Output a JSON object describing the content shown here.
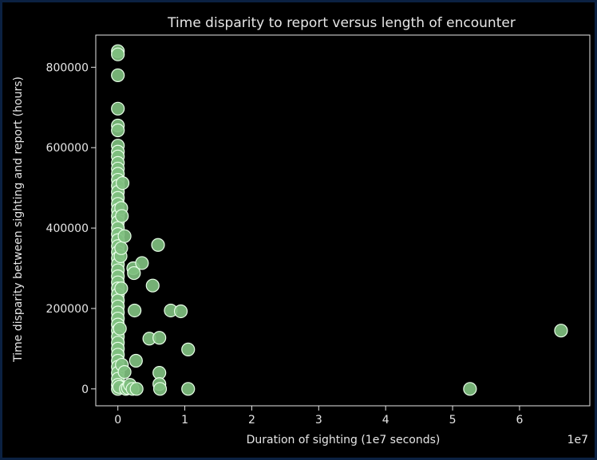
{
  "chart_data": {
    "type": "scatter",
    "title": "Time disparity to report versus length of encounter",
    "xlabel": "Duration of sighting (1e7 seconds)",
    "ylabel": "Time disparity between sighting and report (hours)",
    "x_offset_label": "1e7",
    "x_ticks": [
      0,
      1,
      2,
      3,
      4,
      5,
      6
    ],
    "x_tick_labels": [
      "0",
      "1",
      "2",
      "3",
      "4",
      "5",
      "6"
    ],
    "y_ticks": [
      0,
      200000,
      400000,
      600000,
      800000
    ],
    "y_tick_labels": [
      "0",
      "200000",
      "400000",
      "600000",
      "800000"
    ],
    "xlim": [
      -0.33,
      7.05
    ],
    "ylim": [
      -42000,
      880000
    ],
    "grid": false,
    "legend": "none",
    "colors": {
      "marker_fill": "#7fbf7f",
      "marker_edge": "#e8ffe8",
      "dense_fill": "#f0fff0",
      "axes": "#e6e6e6",
      "background": "#000000"
    },
    "points": [
      {
        "x": 0.0,
        "y": 840000
      },
      {
        "x": 0.0,
        "y": 832000
      },
      {
        "x": 0.0,
        "y": 780000
      },
      {
        "x": 0.0,
        "y": 697000
      },
      {
        "x": 0.0,
        "y": 655000
      },
      {
        "x": 0.0,
        "y": 643000
      },
      {
        "x": 0.0,
        "y": 605000
      },
      {
        "x": 0.0,
        "y": 590000
      },
      {
        "x": 0.0,
        "y": 578000
      },
      {
        "x": 0.0,
        "y": 562000
      },
      {
        "x": 0.0,
        "y": 548000
      },
      {
        "x": 0.0,
        "y": 535000
      },
      {
        "x": 0.0,
        "y": 520000
      },
      {
        "x": 0.0,
        "y": 505000
      },
      {
        "x": 0.0,
        "y": 490000
      },
      {
        "x": 0.0,
        "y": 475000
      },
      {
        "x": 0.0,
        "y": 460000
      },
      {
        "x": 0.0,
        "y": 445000
      },
      {
        "x": 0.0,
        "y": 430000
      },
      {
        "x": 0.0,
        "y": 415000
      },
      {
        "x": 0.0,
        "y": 400000
      },
      {
        "x": 0.0,
        "y": 385000
      },
      {
        "x": 0.0,
        "y": 370000
      },
      {
        "x": 0.0,
        "y": 355000
      },
      {
        "x": 0.0,
        "y": 340000
      },
      {
        "x": 0.0,
        "y": 325000
      },
      {
        "x": 0.0,
        "y": 310000
      },
      {
        "x": 0.0,
        "y": 295000
      },
      {
        "x": 0.0,
        "y": 280000
      },
      {
        "x": 0.0,
        "y": 265000
      },
      {
        "x": 0.0,
        "y": 250000
      },
      {
        "x": 0.0,
        "y": 235000
      },
      {
        "x": 0.0,
        "y": 220000
      },
      {
        "x": 0.0,
        "y": 205000
      },
      {
        "x": 0.0,
        "y": 190000
      },
      {
        "x": 0.0,
        "y": 175000
      },
      {
        "x": 0.0,
        "y": 160000
      },
      {
        "x": 0.0,
        "y": 145000
      },
      {
        "x": 0.0,
        "y": 130000
      },
      {
        "x": 0.0,
        "y": 115000
      },
      {
        "x": 0.0,
        "y": 100000
      },
      {
        "x": 0.0,
        "y": 85000
      },
      {
        "x": 0.0,
        "y": 70000
      },
      {
        "x": 0.0,
        "y": 55000
      },
      {
        "x": 0.0,
        "y": 40000
      },
      {
        "x": 0.0,
        "y": 25000
      },
      {
        "x": 0.0,
        "y": 10000
      },
      {
        "x": 0.0,
        "y": 0
      },
      {
        "x": 0.05,
        "y": 450000
      },
      {
        "x": 0.04,
        "y": 330000
      },
      {
        "x": 0.05,
        "y": 250000
      },
      {
        "x": 0.03,
        "y": 150000
      },
      {
        "x": 0.06,
        "y": 60000
      },
      {
        "x": 0.02,
        "y": 5000
      },
      {
        "x": 0.07,
        "y": 512000
      },
      {
        "x": 0.06,
        "y": 430000
      },
      {
        "x": 0.05,
        "y": 350000
      },
      {
        "x": 0.1,
        "y": 380000
      },
      {
        "x": 0.1,
        "y": 42000
      },
      {
        "x": 0.12,
        "y": 0
      },
      {
        "x": 0.15,
        "y": 2000
      },
      {
        "x": 0.18,
        "y": 10000
      },
      {
        "x": 0.22,
        "y": 0
      },
      {
        "x": 0.23,
        "y": 300000
      },
      {
        "x": 0.24,
        "y": 288000
      },
      {
        "x": 0.25,
        "y": 195000
      },
      {
        "x": 0.27,
        "y": 70000
      },
      {
        "x": 0.28,
        "y": 0
      },
      {
        "x": 0.36,
        "y": 313000
      },
      {
        "x": 0.47,
        "y": 125000
      },
      {
        "x": 0.52,
        "y": 257000
      },
      {
        "x": 0.6,
        "y": 358000
      },
      {
        "x": 0.62,
        "y": 127000
      },
      {
        "x": 0.62,
        "y": 40000
      },
      {
        "x": 0.62,
        "y": 12000
      },
      {
        "x": 0.63,
        "y": 0
      },
      {
        "x": 0.79,
        "y": 195000
      },
      {
        "x": 0.94,
        "y": 193000
      },
      {
        "x": 1.05,
        "y": 98000
      },
      {
        "x": 1.05,
        "y": 0
      },
      {
        "x": 5.26,
        "y": 0
      },
      {
        "x": 6.62,
        "y": 145000
      }
    ]
  }
}
